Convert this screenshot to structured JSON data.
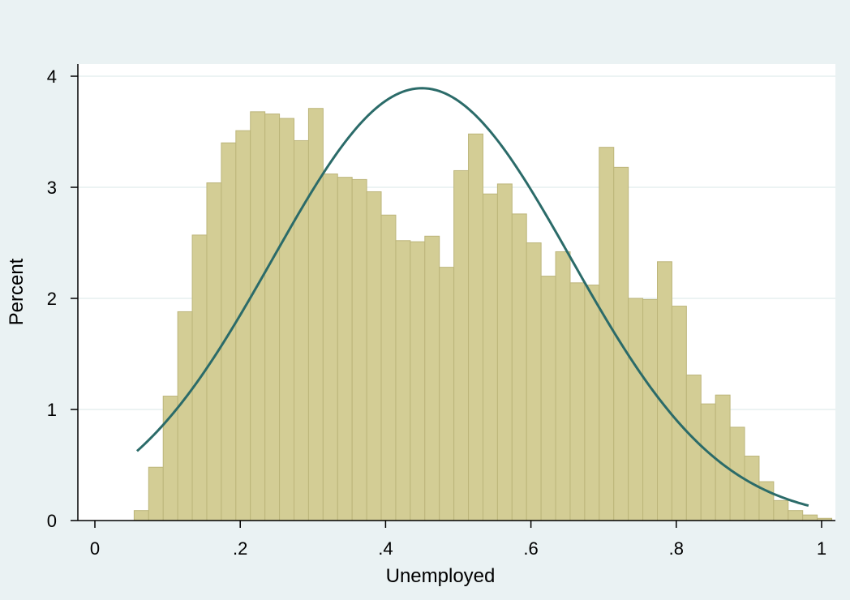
{
  "chart_data": {
    "type": "bar",
    "title": "",
    "xlabel": "Unemployed",
    "ylabel": "Percent",
    "xlim": [
      0,
      1
    ],
    "ylim": [
      0,
      4
    ],
    "x_ticks": [
      {
        "value": 0,
        "label": "0"
      },
      {
        "value": 0.2,
        "label": ".2"
      },
      {
        "value": 0.4,
        "label": ".4"
      },
      {
        "value": 0.6,
        "label": ".6"
      },
      {
        "value": 0.8,
        "label": ".8"
      },
      {
        "value": 1,
        "label": "1"
      }
    ],
    "y_ticks": [
      {
        "value": 0,
        "label": "0"
      },
      {
        "value": 1,
        "label": "1"
      },
      {
        "value": 2,
        "label": "2"
      },
      {
        "value": 3,
        "label": "3"
      },
      {
        "value": 4,
        "label": "4"
      }
    ],
    "grid": "horizontal",
    "bin_start": 0.054,
    "bin_width": 0.02,
    "values": [
      0.09,
      0.48,
      1.12,
      1.88,
      2.57,
      3.04,
      3.4,
      3.51,
      3.68,
      3.66,
      3.62,
      3.42,
      3.71,
      3.12,
      3.09,
      3.07,
      2.96,
      2.75,
      2.52,
      2.51,
      2.56,
      2.28,
      3.15,
      3.48,
      2.94,
      3.03,
      2.76,
      2.5,
      2.2,
      2.42,
      2.14,
      2.12,
      3.36,
      3.18,
      2.0,
      1.99,
      2.33,
      1.93,
      1.31,
      1.05,
      1.13,
      0.84,
      0.58,
      0.35,
      0.18,
      0.09,
      0.05,
      0.02
    ],
    "bar_color": "#d3cd95",
    "bar_edge_color": "#bcb57a",
    "normal_curve": {
      "mean": 0.45,
      "sd": 0.205,
      "x_start": 0.058,
      "x_end": 0.982,
      "color": "#2b6b69"
    }
  }
}
